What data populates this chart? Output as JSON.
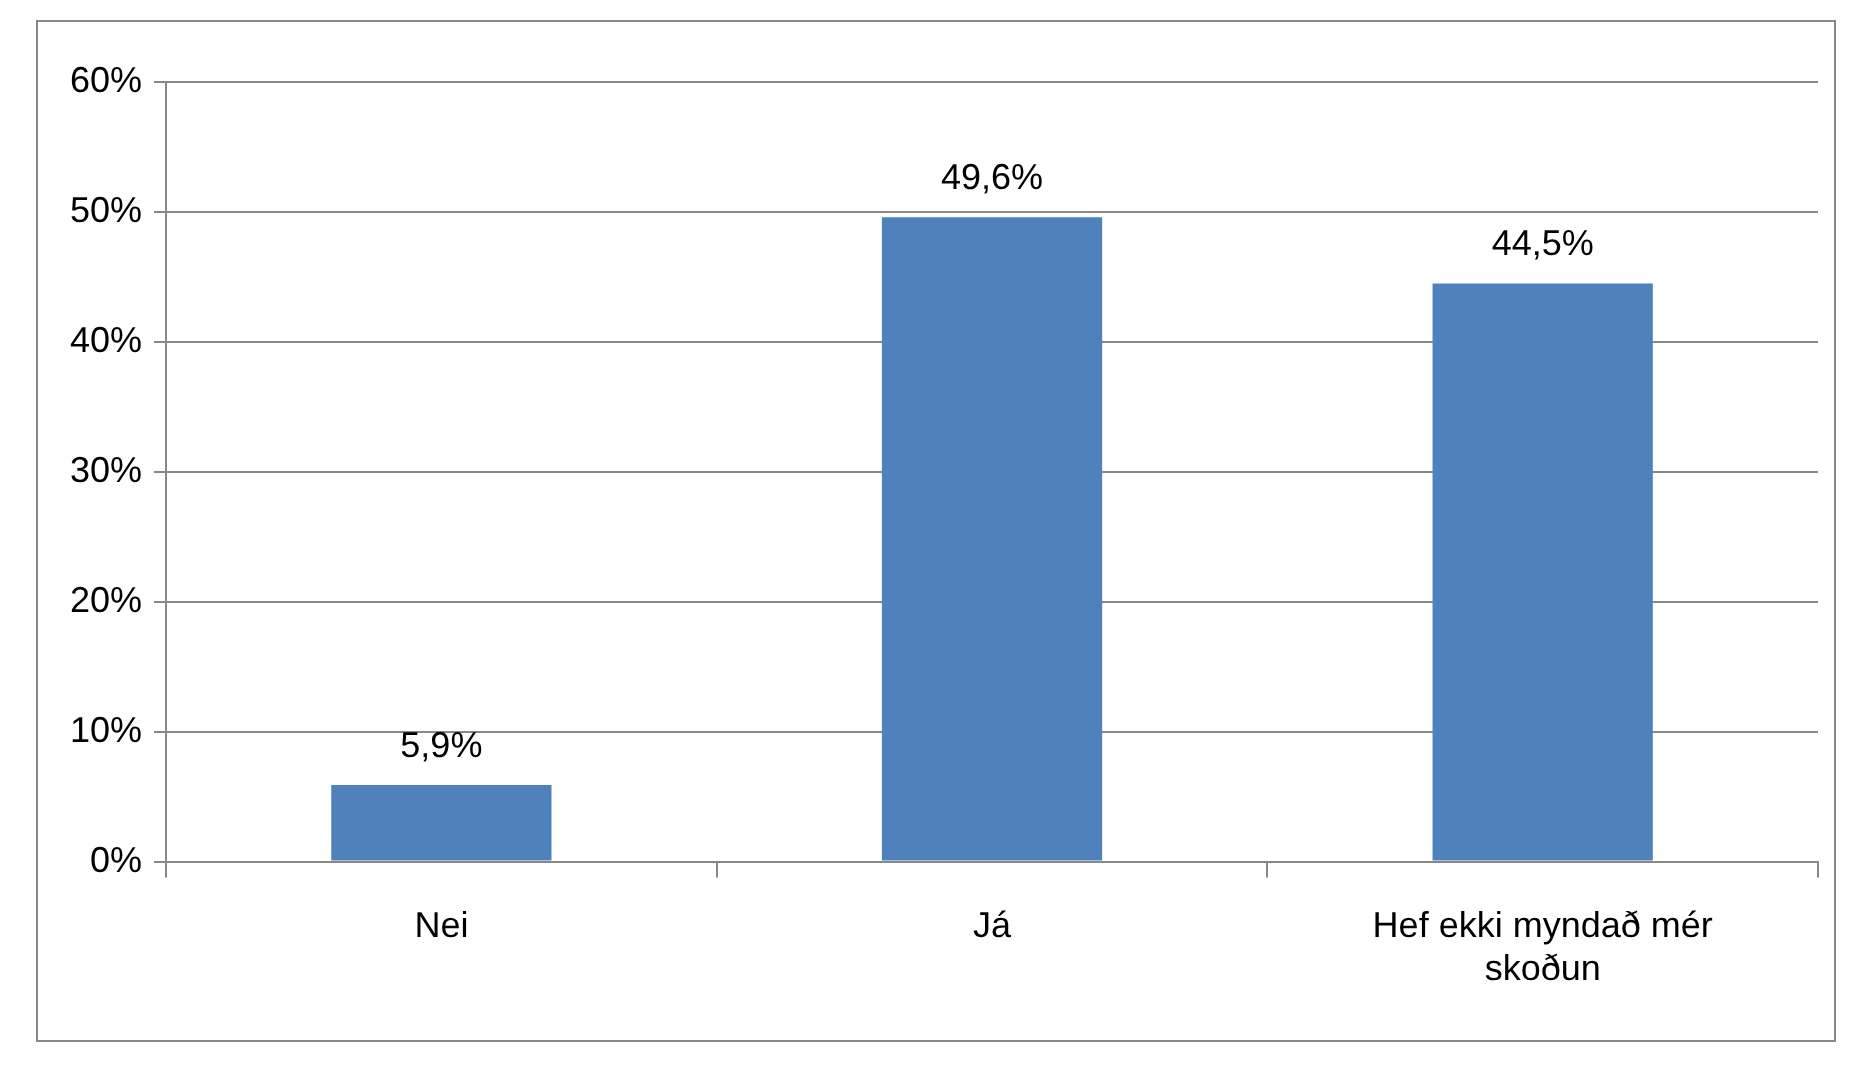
{
  "chart_data": {
    "type": "bar",
    "categories": [
      "Nei",
      "Já",
      "Hef ekki myndað mér skoðun"
    ],
    "values": [
      5.9,
      49.6,
      44.5
    ],
    "color": "#4f81bd",
    "value_labels": [
      "5,9%",
      "49,6%",
      "44,5%"
    ],
    "ylim": [
      0,
      60
    ],
    "yticks": [
      {
        "value": 0,
        "label": "0%"
      },
      {
        "value": 10,
        "label": "10%"
      },
      {
        "value": 20,
        "label": "20%"
      },
      {
        "value": 30,
        "label": "30%"
      },
      {
        "value": 40,
        "label": "40%"
      },
      {
        "value": 50,
        "label": "50%"
      },
      {
        "value": 60,
        "label": "60%"
      }
    ],
    "grid": "y",
    "legend": false
  }
}
